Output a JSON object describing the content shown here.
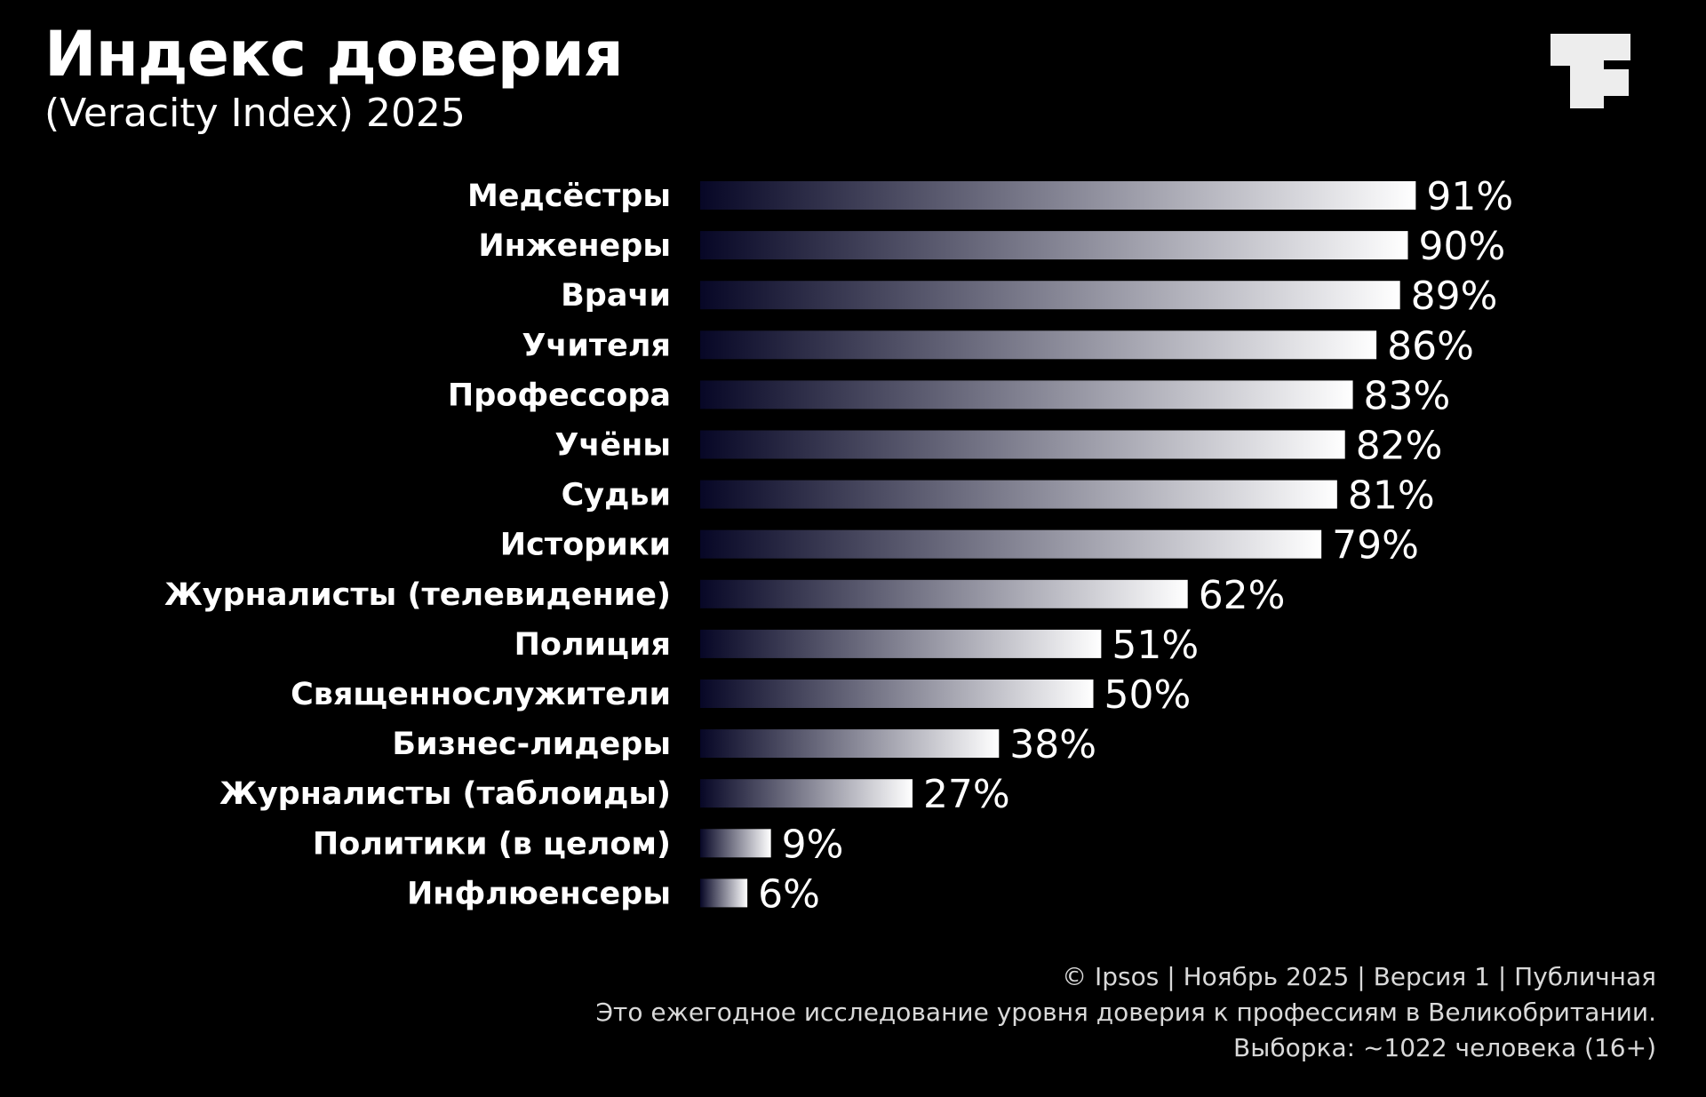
{
  "title": "Индекс доверия",
  "subtitle": "(Veracity Index) 2025",
  "logo_icon": "brand-logo-icon",
  "colors": {
    "background": "#000000",
    "bar_start": "#070726",
    "bar_end": "#ffffff",
    "text": "#ffffff",
    "footer_text": "#d9d9d9",
    "logo": "#ededed"
  },
  "chart_data": {
    "type": "bar",
    "orientation": "horizontal",
    "categories": [
      "Медсёстры",
      "Инженеры",
      "Врачи",
      "Учителя",
      "Профессора",
      "Учёны",
      "Судьи",
      "Историки",
      "Журналисты (телевидение)",
      "Полиция",
      "Священнослужители",
      "Бизнес-лидеры",
      "Журналисты (таблоиды)",
      "Политики (в целом)",
      "Инфлюенсеры"
    ],
    "values": [
      91,
      90,
      89,
      86,
      83,
      82,
      81,
      79,
      62,
      51,
      50,
      38,
      27,
      9,
      6
    ],
    "value_labels": [
      "91%",
      "90%",
      "89%",
      "86%",
      "83%",
      "82%",
      "81%",
      "79%",
      "62%",
      "51%",
      "50%",
      "38%",
      "27%",
      "9%",
      "6%"
    ],
    "unit": "%",
    "xlim": [
      0,
      100
    ],
    "grid": false,
    "legend": "none"
  },
  "footer": {
    "line1": "© Ipsos | Ноябрь 2025 | Версия 1 | Публичная",
    "line2": "Это ежегодное исследование уровня доверия к профессиям в Великобритании.",
    "line3": "Выборка: ~1022 человека (16+)"
  }
}
